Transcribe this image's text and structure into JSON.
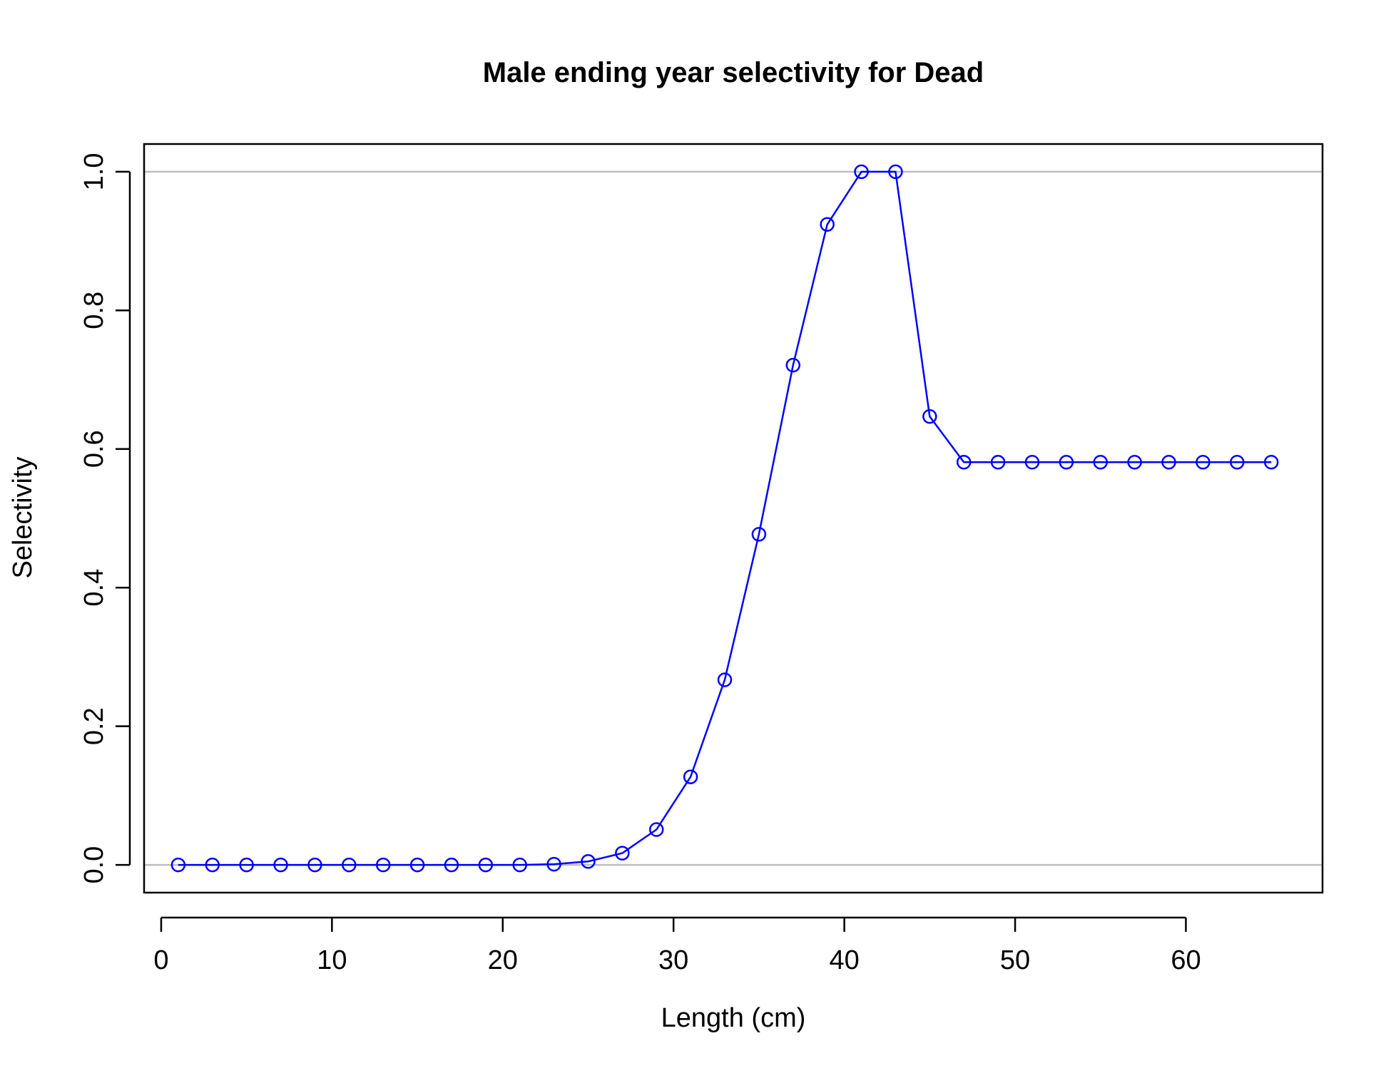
{
  "chart_data": {
    "type": "line",
    "title": "Male ending year selectivity for Dead",
    "xlabel": "Length (cm)",
    "ylabel": "Selectivity",
    "xlim": [
      -1,
      68
    ],
    "ylim": [
      -0.04,
      1.04
    ],
    "x_ticks": [
      0,
      10,
      20,
      30,
      40,
      50,
      60
    ],
    "x_tick_labels": [
      "0",
      "10",
      "20",
      "30",
      "40",
      "50",
      "60"
    ],
    "y_ticks": [
      0.0,
      0.2,
      0.4,
      0.6,
      0.8,
      1.0
    ],
    "y_tick_labels": [
      "0.0",
      "0.2",
      "0.4",
      "0.6",
      "0.8",
      "1.0"
    ],
    "reference_lines": [
      0,
      1
    ],
    "grid": false,
    "legend": "none",
    "series": [
      {
        "color": "#0000ff",
        "marker": "open-circle",
        "x": [
          1,
          3,
          5,
          7,
          9,
          11,
          13,
          15,
          17,
          19,
          21,
          23,
          25,
          27,
          29,
          31,
          33,
          35,
          37,
          39,
          41,
          43,
          45,
          47,
          49,
          51,
          53,
          55,
          57,
          59,
          61,
          63,
          65
        ],
        "y": [
          0.0,
          0.0,
          0.0,
          0.0,
          0.0,
          0.0,
          0.0,
          0.0,
          0.0,
          0.0,
          0.0,
          0.001,
          0.005,
          0.017,
          0.051,
          0.127,
          0.267,
          0.477,
          0.721,
          0.924,
          1.0,
          1.0,
          0.647,
          0.581,
          0.581,
          0.581,
          0.581,
          0.581,
          0.581,
          0.581,
          0.581,
          0.581,
          0.581
        ]
      }
    ],
    "colors": {
      "axes": "#000000",
      "reference_line": "#bebebe",
      "series": "#0000ff"
    }
  }
}
